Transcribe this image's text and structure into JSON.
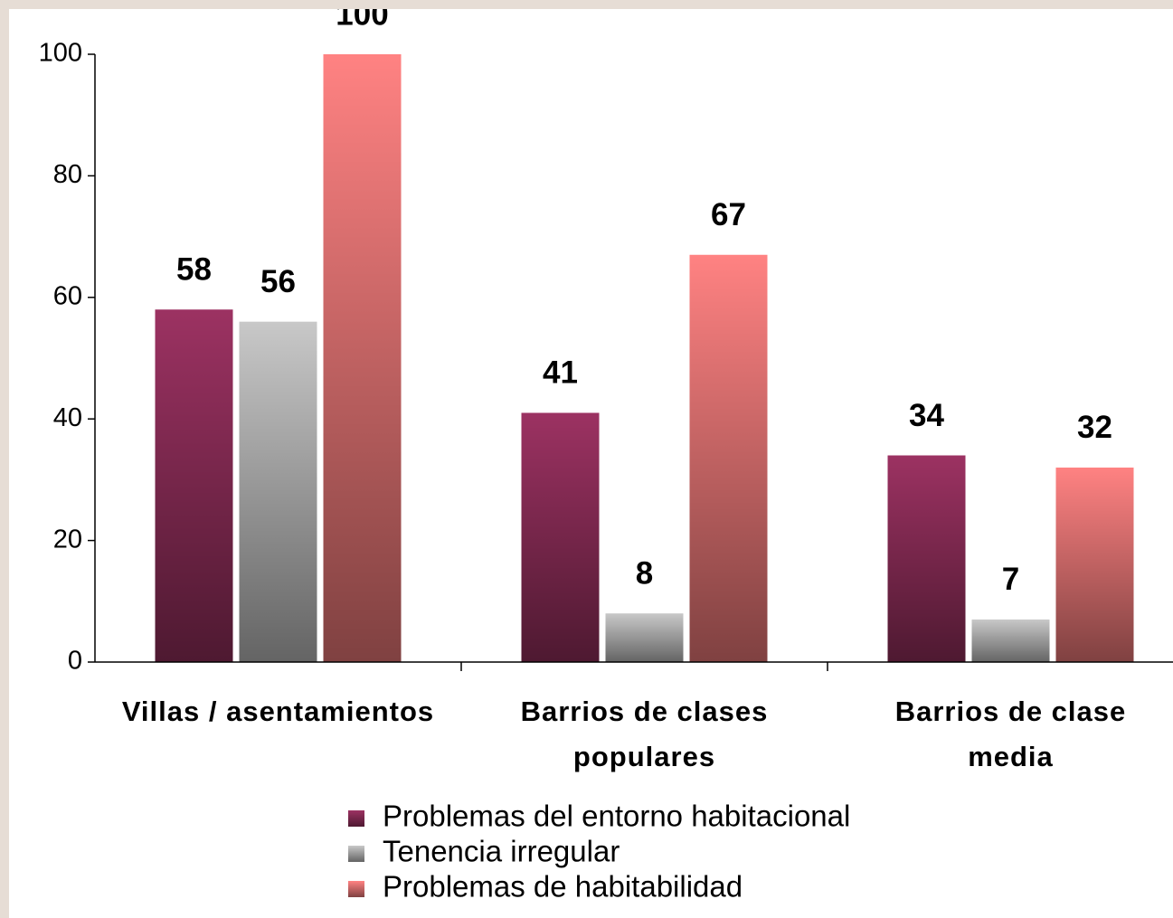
{
  "chart_data": {
    "type": "bar",
    "categories": [
      "Villas / asentamientos",
      "Barrios de clases populares",
      "Barrios de clase media"
    ],
    "series": [
      {
        "name": "Problemas del entorno habitacional",
        "color": "#9c3262",
        "values": [
          58,
          41,
          34
        ]
      },
      {
        "name": "Tenencia irregular",
        "color": "#c8c8c8",
        "values": [
          56,
          8,
          7
        ]
      },
      {
        "name": "Problemas de habitabilidad",
        "color": "#ff8282",
        "values": [
          100,
          67,
          32
        ]
      }
    ],
    "ylim": [
      0,
      100
    ],
    "yticks": [
      0,
      20,
      40,
      60,
      80,
      100
    ],
    "grid": false,
    "legend": "bottom"
  }
}
